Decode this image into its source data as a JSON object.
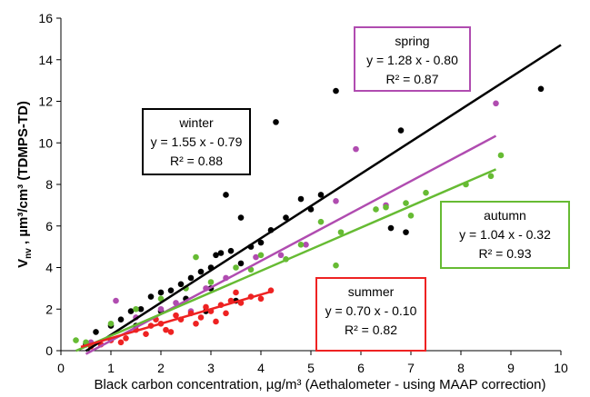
{
  "chart_data": {
    "type": "scatter",
    "x_label": "Black carbon concentration, µg/m³ (Aethalometer - using MAAP correction)",
    "y_label_symbol": "V",
    "y_label_subscript": "nv",
    "y_label_rest": " , µm³/cm³ (TDMPS-TD)",
    "xlim": [
      0,
      10
    ],
    "xticks": [
      0,
      1,
      2,
      3,
      4,
      5,
      6,
      7,
      8,
      9,
      10
    ],
    "ylim": [
      0,
      16
    ],
    "yticks": [
      0,
      2,
      4,
      6,
      8,
      10,
      12,
      14,
      16
    ],
    "grid": false,
    "series": [
      {
        "name": "winter",
        "color": "#000000",
        "x": [
          0.5,
          0.7,
          1.0,
          1.2,
          1.4,
          1.6,
          1.8,
          2.0,
          2.2,
          2.4,
          2.6,
          2.8,
          3.0,
          3.1,
          3.2,
          3.4,
          3.6,
          3.8,
          4.0,
          4.2,
          4.5,
          5.0,
          2.0,
          2.5,
          3.0,
          1.5,
          2.9,
          3.5,
          4.3,
          5.5,
          6.8,
          9.6,
          3.3,
          3.6,
          4.8,
          5.2,
          6.6,
          6.9
        ],
        "values": [
          0.3,
          0.9,
          1.2,
          1.5,
          1.9,
          2.0,
          2.6,
          2.8,
          2.9,
          3.2,
          3.5,
          3.8,
          4.0,
          4.6,
          4.7,
          4.8,
          4.2,
          5.0,
          5.2,
          5.8,
          6.4,
          6.8,
          1.9,
          2.5,
          3.0,
          1.2,
          1.9,
          2.4,
          11.0,
          12.5,
          10.6,
          12.6,
          7.5,
          6.4,
          7.3,
          7.5,
          5.9,
          5.7
        ],
        "fit": {
          "slope": 1.55,
          "intercept": -0.79,
          "xlim": [
            0.5,
            10
          ]
        },
        "annotation": [
          "winter",
          "y = 1.55 x - 0.79",
          "R² = 0.88"
        ]
      },
      {
        "name": "spring",
        "color": "#b04cb0",
        "x": [
          0.6,
          1.1,
          1.5,
          2.0,
          2.3,
          2.9,
          3.3,
          3.9,
          4.4,
          4.9,
          5.5,
          5.9,
          6.5,
          8.7,
          2.6
        ],
        "values": [
          0.4,
          2.4,
          1.6,
          2.0,
          2.3,
          3.0,
          3.5,
          4.5,
          4.6,
          5.1,
          7.2,
          9.7,
          7.0,
          11.9,
          1.9
        ],
        "fit": {
          "slope": 1.28,
          "intercept": -0.8,
          "xlim": [
            0.5,
            8.7
          ]
        },
        "annotation": [
          "spring",
          "y = 1.28 x - 0.80",
          "R² = 0.87"
        ]
      },
      {
        "name": "autumn",
        "color": "#66bb33",
        "x": [
          8.8,
          8.6,
          8.1,
          7.3,
          6.9,
          6.5,
          6.3,
          7.0,
          5.5,
          5.6,
          5.2,
          4.8,
          4.0,
          3.5,
          3.0,
          2.5,
          2.0,
          1.5,
          1.0,
          0.5,
          0.3,
          3.8,
          4.5,
          2.7
        ],
        "values": [
          9.4,
          8.4,
          8.0,
          7.6,
          7.1,
          6.9,
          6.8,
          6.5,
          4.1,
          5.7,
          6.2,
          5.1,
          4.6,
          4.0,
          3.3,
          3.0,
          2.5,
          2.0,
          1.3,
          0.4,
          0.5,
          3.9,
          4.4,
          4.5
        ],
        "fit": {
          "slope": 1.04,
          "intercept": -0.32,
          "xlim": [
            0.3,
            8.7
          ]
        },
        "annotation": [
          "autumn",
          "y = 1.04 x - 0.32",
          "R² = 0.93"
        ]
      },
      {
        "name": "summer",
        "color": "#ee2222",
        "x": [
          0.6,
          1.0,
          1.3,
          1.5,
          1.8,
          2.0,
          2.2,
          2.4,
          2.6,
          2.8,
          3.0,
          3.2,
          3.4,
          3.6,
          3.8,
          4.0,
          4.2,
          1.2,
          1.7,
          2.3,
          2.9,
          3.3,
          0.8,
          1.9,
          2.1,
          2.7,
          3.1,
          3.5
        ],
        "values": [
          0.2,
          0.5,
          0.6,
          1.0,
          1.2,
          1.3,
          0.9,
          1.5,
          1.8,
          1.6,
          1.9,
          2.2,
          2.4,
          2.3,
          2.6,
          2.5,
          2.9,
          0.4,
          0.8,
          1.7,
          2.1,
          1.8,
          0.3,
          1.5,
          1.0,
          1.3,
          1.4,
          2.8
        ],
        "fit": {
          "slope": 0.7,
          "intercept": -0.1,
          "xlim": [
            0.4,
            4.2
          ]
        },
        "annotation": [
          "summer",
          "y = 0.70 x - 0.10",
          "R² = 0.82"
        ]
      }
    ]
  }
}
